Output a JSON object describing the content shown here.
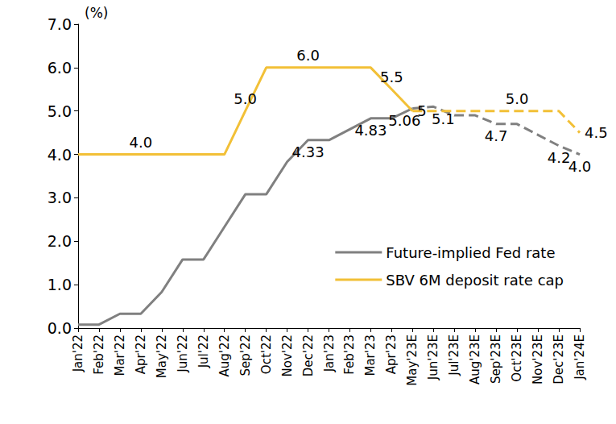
{
  "chart_data": {
    "type": "line",
    "ylabel": "(%)",
    "categories": [
      "Jan'22",
      "Feb'22",
      "Mar'22",
      "Apr'22",
      "May'22",
      "Jun'22",
      "Jul'22",
      "Aug'22",
      "Sep'22",
      "Oct'22",
      "Nov'22",
      "Dec'22",
      "Jan'23",
      "Feb'23",
      "Mar'23",
      "Apr'23",
      "May'23E",
      "Jun'23E",
      "Jul'23E",
      "Aug'23E",
      "Sep'23E",
      "Oct'23E",
      "Nov'23E",
      "Dec'23E",
      "Jan'24E"
    ],
    "series": [
      {
        "name": "Future-implied Fed rate",
        "color": "#808080",
        "line_style": "solid",
        "values": [
          0.08,
          0.08,
          0.33,
          0.33,
          0.83,
          1.58,
          1.58,
          2.33,
          3.08,
          3.08,
          3.83,
          4.33,
          4.33,
          4.58,
          4.83,
          4.83,
          5.06,
          5.1,
          4.9,
          4.9,
          4.7,
          4.7,
          4.45,
          4.2,
          4.0
        ],
        "value_labels": [
          null,
          null,
          null,
          null,
          null,
          null,
          null,
          null,
          null,
          null,
          null,
          "4.33",
          null,
          null,
          "4.83",
          null,
          "5.06",
          "5.1",
          null,
          null,
          "4.7",
          null,
          null,
          "4.2",
          "4.0"
        ]
      },
      {
        "name": "SBV 6M deposit rate cap",
        "color": "#F2C037",
        "line_style": "solid",
        "values": [
          4.0,
          4.0,
          4.0,
          4.0,
          4.0,
          4.0,
          4.0,
          4.0,
          5.0,
          6.0,
          6.0,
          6.0,
          6.0,
          6.0,
          6.0,
          5.5,
          5.0,
          5.0,
          5.0,
          5.0,
          5.0,
          5.0,
          5.0,
          5.0,
          4.5
        ],
        "value_labels": [
          null,
          null,
          null,
          "4.0",
          null,
          null,
          null,
          null,
          "5.0",
          null,
          null,
          "6.0",
          null,
          null,
          null,
          "5.5",
          "5",
          null,
          null,
          null,
          null,
          "5.0",
          null,
          null,
          "4.5"
        ]
      }
    ],
    "ylim": [
      0,
      7
    ],
    "yticks": [
      {
        "value": 0,
        "label": "0.0"
      },
      {
        "value": 1,
        "label": "1.0"
      },
      {
        "value": 2,
        "label": "2.0"
      },
      {
        "value": 3,
        "label": "3.0"
      },
      {
        "value": 4,
        "label": "4.0"
      },
      {
        "value": 5,
        "label": "5.0"
      },
      {
        "value": 6,
        "label": "6.0"
      },
      {
        "value": 7,
        "label": "7.0"
      }
    ],
    "grid": false,
    "legend": "lower right",
    "data_labels": true
  }
}
